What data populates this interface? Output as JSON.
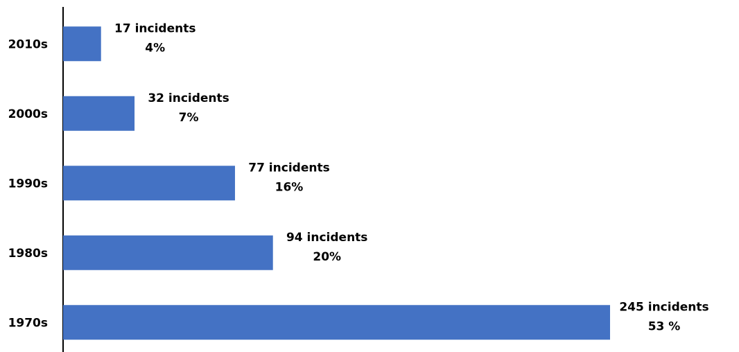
{
  "chart_data": {
    "type": "bar",
    "orientation": "horizontal",
    "categories": [
      "2010s",
      "2000s",
      "1990s",
      "1980s",
      "1970s"
    ],
    "values": [
      17,
      32,
      77,
      94,
      245
    ],
    "data_labels": [
      [
        "17 incidents",
        "4%"
      ],
      [
        "32 incidents",
        "7%"
      ],
      [
        "77 incidents",
        "16%"
      ],
      [
        "94 incidents",
        "20%"
      ],
      [
        "245 incidents",
        "53 %"
      ]
    ],
    "title": "",
    "xlabel": "",
    "ylabel": "",
    "xlim": [
      0,
      245
    ],
    "grid": false,
    "legend": "none",
    "colors": {
      "bar": "#4472C4",
      "axis": "#000000",
      "text": "#000000"
    }
  }
}
